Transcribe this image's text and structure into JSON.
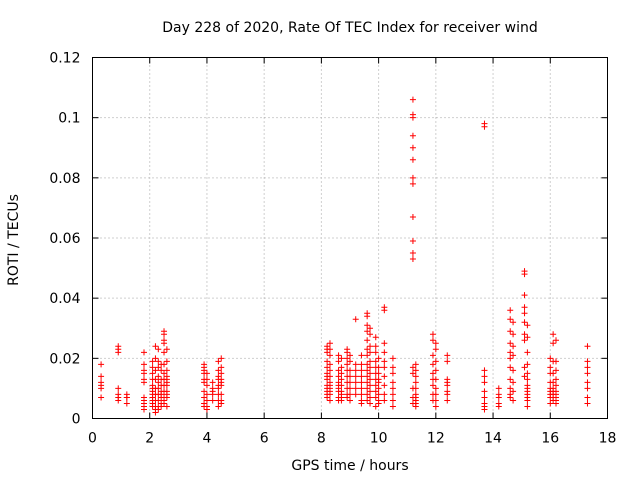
{
  "chart_data": {
    "type": "scatter",
    "title": "Day 228 of 2020, Rate Of TEC Index for receiver wind",
    "xlabel": "GPS time / hours",
    "ylabel": "ROTI / TECUs",
    "xlim": [
      0,
      18
    ],
    "ylim": [
      0,
      0.12
    ],
    "xticks": [
      0,
      2,
      4,
      6,
      8,
      10,
      12,
      14,
      16,
      18
    ],
    "yticks": [
      0,
      0.02,
      0.04,
      0.06,
      0.08,
      0.1,
      0.12
    ],
    "xtick_labels": [
      "0",
      "2",
      "4",
      "6",
      "8",
      "10",
      "12",
      "14",
      "16",
      "18"
    ],
    "ytick_labels": [
      "0",
      "0.02",
      "0.04",
      "0.06",
      "0.08",
      "0.1",
      "0.12"
    ],
    "grid": true,
    "marker": "+",
    "color": "#ff0000",
    "series": [
      {
        "name": "ROTI",
        "x": [
          0.3,
          0.3,
          0.3,
          0.3,
          0.3,
          0.3,
          0.9,
          0.9,
          0.9,
          0.9,
          0.9,
          0.9,
          0.9,
          1.2,
          1.2,
          1.2,
          1.2,
          1.8,
          1.8,
          1.8,
          1.8,
          1.8,
          1.8,
          1.8,
          1.8,
          1.8,
          1.8,
          1.8,
          2.1,
          2.1,
          2.1,
          2.1,
          2.1,
          2.1,
          2.1,
          2.1,
          2.1,
          2.1,
          2.1,
          2.1,
          2.2,
          2.2,
          2.2,
          2.2,
          2.2,
          2.2,
          2.2,
          2.2,
          2.2,
          2.2,
          2.3,
          2.3,
          2.3,
          2.3,
          2.3,
          2.3,
          2.3,
          2.3,
          2.3,
          2.3,
          2.4,
          2.4,
          2.4,
          2.4,
          2.4,
          2.4,
          2.4,
          2.4,
          2.4,
          2.5,
          2.5,
          2.5,
          2.5,
          2.5,
          2.5,
          2.5,
          2.5,
          2.5,
          2.5,
          2.5,
          2.5,
          2.5,
          2.6,
          2.6,
          2.6,
          2.6,
          2.6,
          2.6,
          2.6,
          2.6,
          2.6,
          2.6,
          2.6,
          3.9,
          3.9,
          3.9,
          3.9,
          3.9,
          3.9,
          3.9,
          3.9,
          3.9,
          3.9,
          4.0,
          4.0,
          4.0,
          4.0,
          4.0,
          4.0,
          4.0,
          4.2,
          4.2,
          4.2,
          4.2,
          4.2,
          4.4,
          4.4,
          4.4,
          4.4,
          4.4,
          4.4,
          4.4,
          4.4,
          4.4,
          4.5,
          4.5,
          4.5,
          4.5,
          4.5,
          4.5,
          4.5,
          4.5,
          4.5,
          8.2,
          8.2,
          8.2,
          8.2,
          8.2,
          8.2,
          8.2,
          8.2,
          8.2,
          8.2,
          8.2,
          8.2,
          8.2,
          8.3,
          8.3,
          8.3,
          8.3,
          8.3,
          8.3,
          8.3,
          8.3,
          8.3,
          8.3,
          8.3,
          8.3,
          8.6,
          8.6,
          8.6,
          8.6,
          8.6,
          8.6,
          8.6,
          8.6,
          8.6,
          8.6,
          8.7,
          8.7,
          8.7,
          8.7,
          8.7,
          8.7,
          8.7,
          8.7,
          8.7,
          8.9,
          8.9,
          8.9,
          8.9,
          8.9,
          8.9,
          8.9,
          8.9,
          8.9,
          8.9,
          9.0,
          9.0,
          9.0,
          9.0,
          9.0,
          9.0,
          9.0,
          9.0,
          9.2,
          9.2,
          9.2,
          9.2,
          9.2,
          9.2,
          9.2,
          9.4,
          9.4,
          9.4,
          9.4,
          9.4,
          9.4,
          9.4,
          9.4,
          9.4,
          9.6,
          9.6,
          9.6,
          9.6,
          9.6,
          9.6,
          9.6,
          9.6,
          9.6,
          9.6,
          9.6,
          9.6,
          9.6,
          9.6,
          9.7,
          9.7,
          9.7,
          9.7,
          9.7,
          9.7,
          9.7,
          9.7,
          9.7,
          9.7,
          9.7,
          9.7,
          9.9,
          9.9,
          9.9,
          9.9,
          9.9,
          9.9,
          9.9,
          9.9,
          9.9,
          9.9,
          9.9,
          10.0,
          10.0,
          10.0,
          10.0,
          10.0,
          10.0,
          10.0,
          10.0,
          10.0,
          10.2,
          10.2,
          10.2,
          10.2,
          10.2,
          10.2,
          10.2,
          10.2,
          10.2,
          10.2,
          10.5,
          10.5,
          10.5,
          10.5,
          10.5,
          10.5,
          10.5,
          10.5,
          11.2,
          11.2,
          11.2,
          11.2,
          11.2,
          11.2,
          11.2,
          11.2,
          11.2,
          11.2,
          11.2,
          11.2,
          11.2,
          11.2,
          11.2,
          11.2,
          11.2,
          11.3,
          11.3,
          11.3,
          11.3,
          11.3,
          11.3,
          11.3,
          11.3,
          11.3,
          11.3,
          11.9,
          11.9,
          11.9,
          11.9,
          11.9,
          11.9,
          11.9,
          11.9,
          11.9,
          12.0,
          12.0,
          12.0,
          12.0,
          12.0,
          12.0,
          12.0,
          12.0,
          12.0,
          12.4,
          12.4,
          12.4,
          12.4,
          12.4,
          12.4,
          12.4,
          12.4,
          13.7,
          13.7,
          13.7,
          13.7,
          13.7,
          13.7,
          13.7,
          13.7,
          13.7,
          13.7,
          14.2,
          14.2,
          14.2,
          14.2,
          14.2,
          14.6,
          14.6,
          14.6,
          14.6,
          14.6,
          14.6,
          14.6,
          14.6,
          14.6,
          14.6,
          14.6,
          14.7,
          14.7,
          14.7,
          14.7,
          14.7,
          14.7,
          14.7,
          14.7,
          15.1,
          15.1,
          15.1,
          15.1,
          15.1,
          15.1,
          15.1,
          15.1,
          15.1,
          15.1,
          15.2,
          15.2,
          15.2,
          15.2,
          15.2,
          15.2,
          15.2,
          15.2,
          15.2,
          15.2,
          15.2,
          15.2,
          15.2,
          16.0,
          16.0,
          16.0,
          16.0,
          16.0,
          16.0,
          16.0,
          16.0,
          16.0,
          16.1,
          16.1,
          16.1,
          16.1,
          16.1,
          16.1,
          16.1,
          16.1,
          16.1,
          16.1,
          16.2,
          16.2,
          16.2,
          16.2,
          16.2,
          16.2,
          16.2,
          16.2,
          16.2,
          16.2,
          17.3,
          17.3,
          17.3,
          17.3,
          17.3,
          17.3,
          17.3,
          17.3
        ],
        "y": [
          0.018,
          0.014,
          0.012,
          0.011,
          0.01,
          0.007,
          0.024,
          0.022,
          0.023,
          0.01,
          0.008,
          0.007,
          0.006,
          0.008,
          0.007,
          0.007,
          0.005,
          0.022,
          0.018,
          0.016,
          0.015,
          0.013,
          0.012,
          0.007,
          0.006,
          0.005,
          0.004,
          0.003,
          0.019,
          0.017,
          0.015,
          0.013,
          0.011,
          0.01,
          0.009,
          0.008,
          0.007,
          0.006,
          0.005,
          0.004,
          0.024,
          0.02,
          0.016,
          0.013,
          0.01,
          0.008,
          0.006,
          0.004,
          0.003,
          0.002,
          0.023,
          0.019,
          0.017,
          0.014,
          0.012,
          0.01,
          0.008,
          0.006,
          0.004,
          0.003,
          0.018,
          0.016,
          0.013,
          0.011,
          0.009,
          0.008,
          0.007,
          0.005,
          0.004,
          0.029,
          0.028,
          0.026,
          0.025,
          0.022,
          0.018,
          0.015,
          0.013,
          0.011,
          0.009,
          0.007,
          0.006,
          0.005,
          0.023,
          0.019,
          0.016,
          0.014,
          0.013,
          0.012,
          0.011,
          0.009,
          0.008,
          0.007,
          0.004,
          0.018,
          0.017,
          0.016,
          0.015,
          0.013,
          0.012,
          0.009,
          0.007,
          0.005,
          0.004,
          0.015,
          0.013,
          0.011,
          0.008,
          0.006,
          0.004,
          0.003,
          0.012,
          0.01,
          0.009,
          0.008,
          0.006,
          0.019,
          0.016,
          0.014,
          0.013,
          0.011,
          0.01,
          0.008,
          0.006,
          0.004,
          0.02,
          0.017,
          0.015,
          0.013,
          0.012,
          0.011,
          0.008,
          0.006,
          0.005,
          0.024,
          0.023,
          0.022,
          0.019,
          0.017,
          0.015,
          0.014,
          0.013,
          0.011,
          0.01,
          0.009,
          0.008,
          0.007,
          0.025,
          0.023,
          0.021,
          0.018,
          0.016,
          0.014,
          0.012,
          0.011,
          0.01,
          0.009,
          0.008,
          0.006,
          0.021,
          0.019,
          0.016,
          0.014,
          0.012,
          0.011,
          0.01,
          0.009,
          0.007,
          0.006,
          0.02,
          0.017,
          0.015,
          0.013,
          0.011,
          0.009,
          0.008,
          0.007,
          0.006,
          0.023,
          0.022,
          0.02,
          0.018,
          0.016,
          0.014,
          0.012,
          0.01,
          0.008,
          0.007,
          0.021,
          0.019,
          0.016,
          0.014,
          0.012,
          0.01,
          0.008,
          0.006,
          0.033,
          0.018,
          0.016,
          0.014,
          0.012,
          0.01,
          0.008,
          0.021,
          0.018,
          0.016,
          0.014,
          0.012,
          0.01,
          0.008,
          0.006,
          0.005,
          0.035,
          0.034,
          0.031,
          0.029,
          0.026,
          0.023,
          0.021,
          0.018,
          0.016,
          0.014,
          0.012,
          0.01,
          0.008,
          0.006,
          0.03,
          0.028,
          0.024,
          0.022,
          0.019,
          0.017,
          0.015,
          0.013,
          0.011,
          0.009,
          0.007,
          0.005,
          0.027,
          0.024,
          0.022,
          0.019,
          0.017,
          0.015,
          0.013,
          0.011,
          0.009,
          0.007,
          0.004,
          0.02,
          0.017,
          0.015,
          0.013,
          0.012,
          0.01,
          0.008,
          0.006,
          0.005,
          0.037,
          0.036,
          0.025,
          0.022,
          0.019,
          0.017,
          0.014,
          0.011,
          0.008,
          0.006,
          0.02,
          0.017,
          0.015,
          0.012,
          0.01,
          0.008,
          0.006,
          0.004,
          0.106,
          0.101,
          0.1,
          0.094,
          0.09,
          0.086,
          0.08,
          0.078,
          0.067,
          0.059,
          0.055,
          0.053,
          0.017,
          0.015,
          0.01,
          0.007,
          0.005,
          0.018,
          0.016,
          0.014,
          0.012,
          0.01,
          0.008,
          0.007,
          0.006,
          0.005,
          0.004,
          0.028,
          0.026,
          0.021,
          0.018,
          0.015,
          0.013,
          0.011,
          0.008,
          0.006,
          0.025,
          0.023,
          0.019,
          0.016,
          0.013,
          0.01,
          0.008,
          0.006,
          0.004,
          0.021,
          0.019,
          0.013,
          0.012,
          0.011,
          0.009,
          0.008,
          0.006,
          0.098,
          0.097,
          0.016,
          0.014,
          0.012,
          0.009,
          0.007,
          0.005,
          0.004,
          0.003,
          0.01,
          0.008,
          0.007,
          0.005,
          0.004,
          0.036,
          0.033,
          0.029,
          0.025,
          0.022,
          0.02,
          0.017,
          0.013,
          0.01,
          0.008,
          0.007,
          0.032,
          0.028,
          0.024,
          0.021,
          0.016,
          0.012,
          0.009,
          0.006,
          0.049,
          0.048,
          0.041,
          0.037,
          0.035,
          0.032,
          0.028,
          0.026,
          0.017,
          0.014,
          0.031,
          0.027,
          0.022,
          0.018,
          0.015,
          0.013,
          0.011,
          0.01,
          0.009,
          0.008,
          0.007,
          0.006,
          0.004,
          0.02,
          0.017,
          0.015,
          0.012,
          0.01,
          0.009,
          0.008,
          0.007,
          0.005,
          0.028,
          0.025,
          0.019,
          0.015,
          0.012,
          0.01,
          0.009,
          0.008,
          0.007,
          0.006,
          0.026,
          0.019,
          0.016,
          0.013,
          0.011,
          0.009,
          0.008,
          0.007,
          0.006,
          0.005,
          0.024,
          0.019,
          0.017,
          0.015,
          0.012,
          0.01,
          0.007,
          0.005
        ]
      }
    ]
  }
}
